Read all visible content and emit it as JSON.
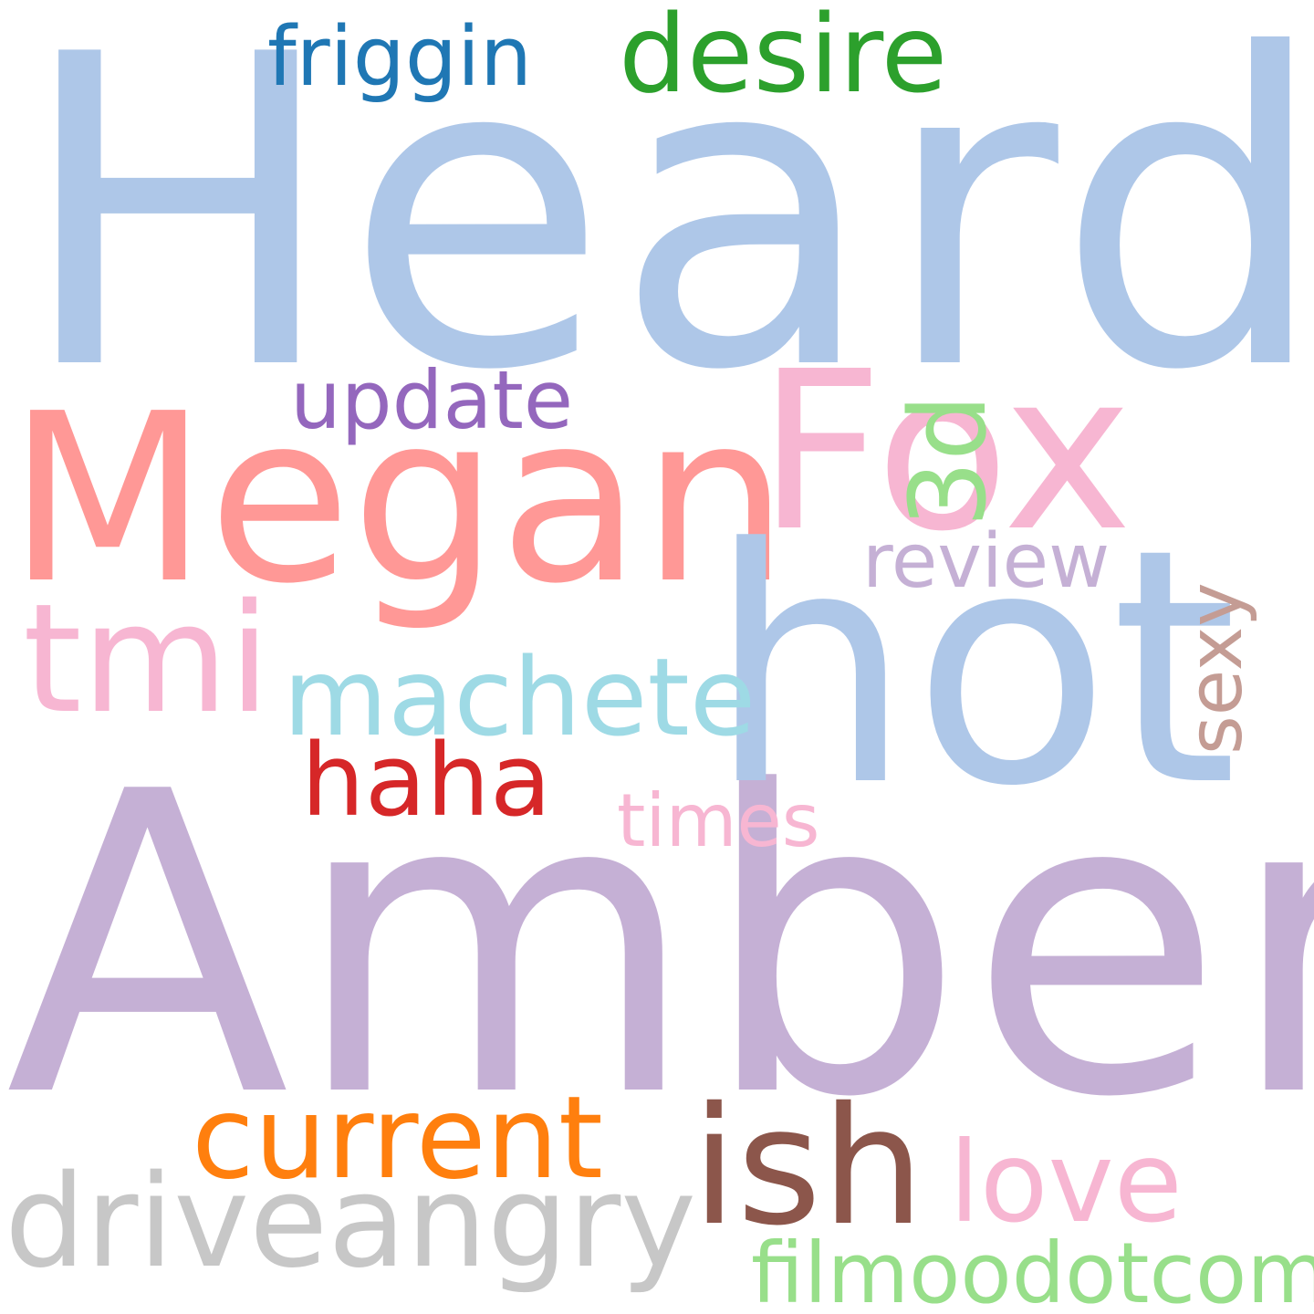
{
  "words": [
    {
      "id": "heard",
      "text": "Heard",
      "color": "#aec7e8",
      "orientation": "horizontal"
    },
    {
      "id": "amber",
      "text": "Amber",
      "color": "#c5b0d5",
      "orientation": "horizontal"
    },
    {
      "id": "megan",
      "text": "Megan",
      "color": "#ff9896",
      "orientation": "horizontal"
    },
    {
      "id": "hot",
      "text": "hot",
      "color": "#aec7e8",
      "orientation": "horizontal"
    },
    {
      "id": "fox",
      "text": "Fox",
      "color": "#f7b6d2",
      "orientation": "horizontal"
    },
    {
      "id": "ish",
      "text": "ish",
      "color": "#8c564b",
      "orientation": "horizontal"
    },
    {
      "id": "driveangry",
      "text": "driveangry",
      "color": "#c7c7c7",
      "orientation": "horizontal"
    },
    {
      "id": "current",
      "text": "current",
      "color": "#ff7f0e",
      "orientation": "horizontal"
    },
    {
      "id": "love",
      "text": "love",
      "color": "#f7b6d2",
      "orientation": "horizontal"
    },
    {
      "id": "tmi",
      "text": "tmi",
      "color": "#f7b6d2",
      "orientation": "horizontal"
    },
    {
      "id": "machete",
      "text": "machete",
      "color": "#9edae5",
      "orientation": "horizontal"
    },
    {
      "id": "desire",
      "text": "desire",
      "color": "#2ca02c",
      "orientation": "horizontal"
    },
    {
      "id": "haha",
      "text": "haha",
      "color": "#d62728",
      "orientation": "horizontal"
    },
    {
      "id": "filmoodotcom",
      "text": "filmoodotcom",
      "color": "#98df8a",
      "orientation": "horizontal"
    },
    {
      "id": "friggin",
      "text": "friggin",
      "color": "#1f77b4",
      "orientation": "horizontal"
    },
    {
      "id": "update",
      "text": "update",
      "color": "#9467bd",
      "orientation": "horizontal"
    },
    {
      "id": "times",
      "text": "times",
      "color": "#f7b6d2",
      "orientation": "horizontal"
    },
    {
      "id": "review",
      "text": "review",
      "color": "#c5b0d5",
      "orientation": "horizontal"
    },
    {
      "id": "3d",
      "text": "3d",
      "color": "#98df8a",
      "orientation": "vertical"
    },
    {
      "id": "sexy",
      "text": "sexy",
      "color": "#c49c94",
      "orientation": "vertical"
    }
  ]
}
